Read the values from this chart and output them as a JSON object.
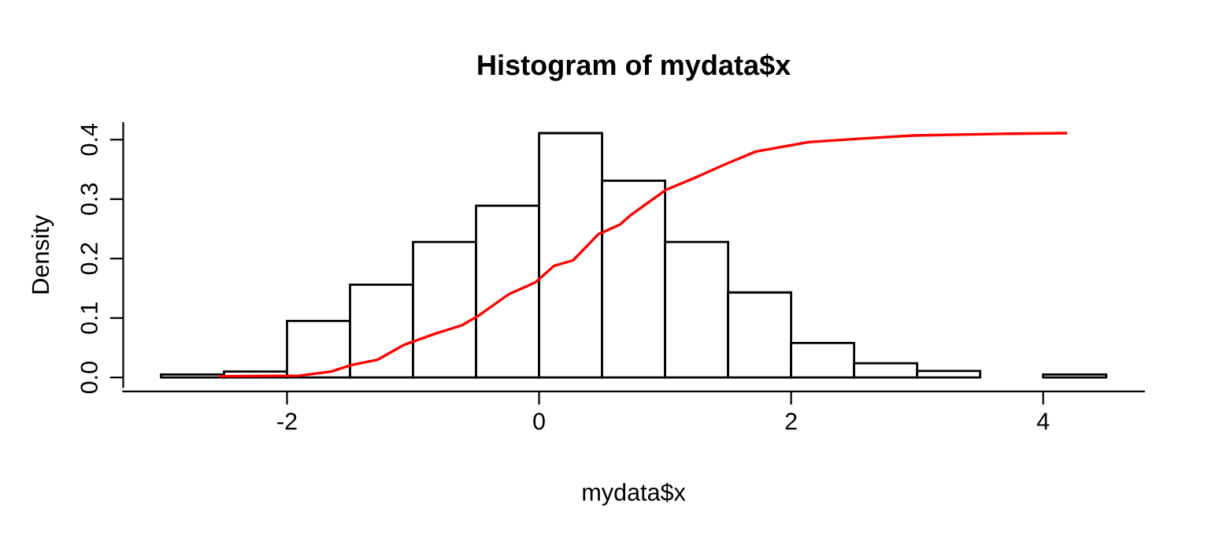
{
  "chart_data": {
    "type": "histogram",
    "title": "Histogram of mydata$x",
    "xlabel": "mydata$x",
    "ylabel": "Density",
    "bins": [
      -3,
      -2.5,
      -2,
      -1.5,
      -1,
      -0.5,
      0,
      0.5,
      1,
      1.5,
      2,
      2.5,
      3,
      3.5,
      4,
      4.5
    ],
    "values": [
      0.005,
      0.01,
      0.095,
      0.156,
      0.228,
      0.289,
      0.411,
      0.331,
      0.228,
      0.143,
      0.058,
      0.024,
      0.011,
      0,
      0.005
    ],
    "color": "#ffffff",
    "series": [
      {
        "type": "line",
        "color": "#ff0000",
        "x": [
          -2.53,
          -1.9,
          -1.65,
          -1.49,
          -1.28,
          -1.07,
          -0.82,
          -0.61,
          -0.48,
          -0.24,
          -0.03,
          0.12,
          0.27,
          0.47,
          0.64,
          0.72,
          0.89,
          1.01,
          1.26,
          1.47,
          1.72,
          2.14,
          2.56,
          2.97,
          3.72,
          4.18
        ],
        "values": [
          0.002,
          0.003,
          0.01,
          0.021,
          0.03,
          0.055,
          0.074,
          0.088,
          0.104,
          0.14,
          0.16,
          0.188,
          0.197,
          0.241,
          0.257,
          0.272,
          0.298,
          0.316,
          0.338,
          0.358,
          0.38,
          0.396,
          0.402,
          0.407,
          0.41,
          0.411
        ]
      }
    ],
    "xlim": [
      -3.3,
      4.8
    ],
    "ylim": [
      -0.016,
      0.428
    ],
    "xticks": [
      -2,
      0,
      2,
      4
    ],
    "yticks": [
      {
        "value": 0,
        "label": "0.0"
      },
      0.1,
      0.2,
      0.3,
      0.4
    ],
    "grid": false,
    "legend": false
  }
}
